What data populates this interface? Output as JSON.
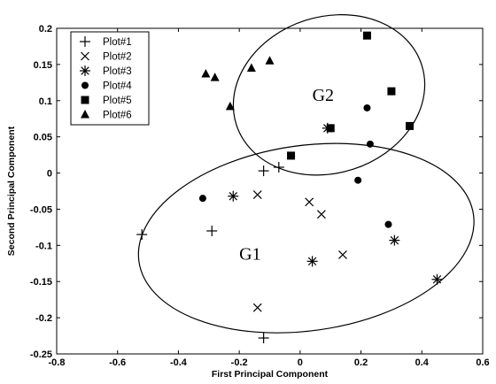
{
  "chart_data": {
    "type": "scatter",
    "title": "",
    "xlabel": "First Principal Component",
    "ylabel": "Second Principal Component",
    "xlim": [
      -0.8,
      0.6
    ],
    "ylim": [
      -0.25,
      0.2
    ],
    "xticks": [
      "-0.8",
      "-0.6",
      "-0.4",
      "-0.2",
      "0",
      "0.2",
      "0.4",
      "0.6"
    ],
    "yticks": [
      "0.2",
      "0.15",
      "0.1",
      "0.05",
      "0",
      "-0.05",
      "-0.1",
      "-0.15",
      "-0.2",
      "-0.25"
    ],
    "grid": false,
    "legend_position": "top-left",
    "series": [
      {
        "name": "Plot#1",
        "marker": "plus",
        "x": [
          -0.52,
          -0.29,
          -0.12,
          -0.07,
          -0.12
        ],
        "y": [
          -0.085,
          -0.08,
          0.003,
          0.008,
          -0.228
        ]
      },
      {
        "name": "Plot#2",
        "marker": "x",
        "x": [
          -0.14,
          0.03,
          0.07,
          -0.14,
          0.14
        ],
        "y": [
          -0.03,
          -0.04,
          -0.057,
          -0.186,
          -0.113
        ]
      },
      {
        "name": "Plot#3",
        "marker": "asterisk",
        "x": [
          -0.22,
          0.04,
          0.09,
          0.31,
          0.45
        ],
        "y": [
          -0.032,
          -0.122,
          0.062,
          -0.093,
          -0.147
        ]
      },
      {
        "name": "Plot#4",
        "marker": "circle",
        "x": [
          -0.32,
          0.19,
          0.22,
          0.23,
          0.29
        ],
        "y": [
          -0.035,
          -0.01,
          0.09,
          0.04,
          -0.071
        ]
      },
      {
        "name": "Plot#5",
        "marker": "square",
        "x": [
          -0.03,
          0.1,
          0.22,
          0.3,
          0.36
        ],
        "y": [
          0.024,
          0.062,
          0.19,
          0.113,
          0.065
        ]
      },
      {
        "name": "Plot#6",
        "marker": "triangle",
        "x": [
          -0.31,
          -0.28,
          -0.23,
          -0.16,
          -0.1
        ],
        "y": [
          0.137,
          0.132,
          0.092,
          0.145,
          0.155
        ]
      }
    ],
    "annotations": [
      {
        "text": "G1",
        "x": -0.2,
        "y": -0.12
      },
      {
        "text": "G2",
        "x": 0.04,
        "y": 0.1
      }
    ],
    "ellipses": [
      {
        "name": "G1",
        "cx": 0.02,
        "cy": -0.09,
        "rx": 0.555,
        "ry": 0.128,
        "angle": -8
      },
      {
        "name": "G2",
        "cx": 0.095,
        "cy": 0.108,
        "rx": 0.32,
        "ry": 0.108,
        "angle": -18
      }
    ]
  }
}
